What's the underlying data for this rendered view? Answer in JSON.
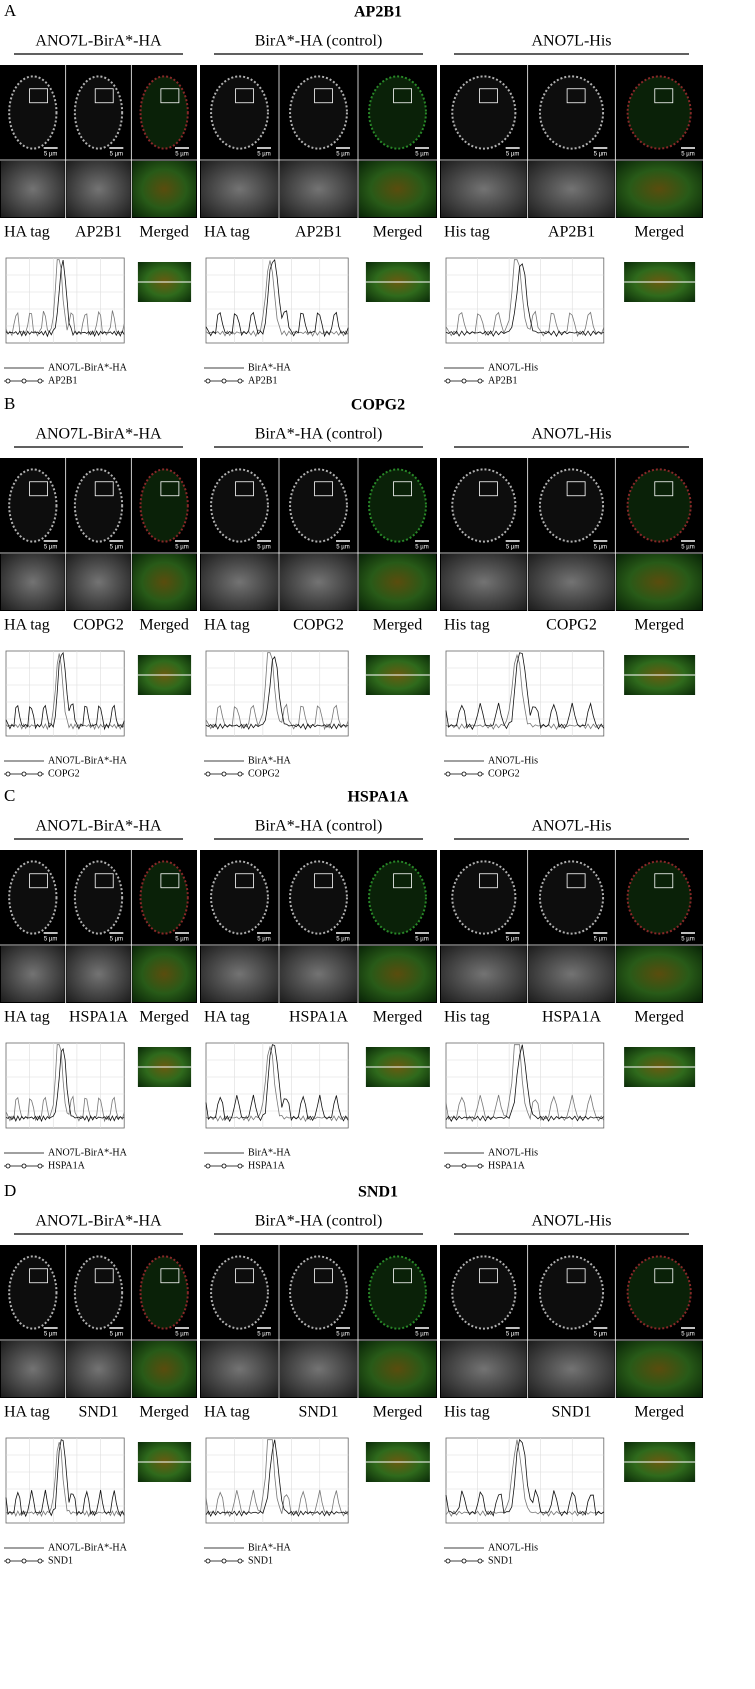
{
  "scale_bar": "5 µm",
  "panels": [
    {
      "letter": "A",
      "title": "AP2B1",
      "columns": [
        {
          "header": "ANO7L-BirA*-HA",
          "labels": [
            "HA tag",
            "AP2B1",
            "Merged"
          ],
          "legend": [
            "ANO7L-BirA*-HA",
            "AP2B1"
          ]
        },
        {
          "header": "BirA*-HA (control)",
          "labels": [
            "HA tag",
            "AP2B1",
            "Merged"
          ],
          "legend": [
            "BirA*-HA",
            "AP2B1"
          ]
        },
        {
          "header": "ANO7L-His",
          "labels": [
            "His tag",
            "AP2B1",
            "Merged"
          ],
          "legend": [
            "ANO7L-His",
            "AP2B1"
          ]
        }
      ]
    },
    {
      "letter": "B",
      "title": "COPG2",
      "columns": [
        {
          "header": "ANO7L-BirA*-HA",
          "labels": [
            "HA tag",
            "COPG2",
            "Merged"
          ],
          "legend": [
            "ANO7L-BirA*-HA",
            "COPG2"
          ]
        },
        {
          "header": "BirA*-HA (control)",
          "labels": [
            "HA tag",
            "COPG2",
            "Merged"
          ],
          "legend": [
            "BirA*-HA",
            "COPG2"
          ]
        },
        {
          "header": "ANO7L-His",
          "labels": [
            "His tag",
            "COPG2",
            "Merged"
          ],
          "legend": [
            "ANO7L-His",
            "COPG2"
          ]
        }
      ]
    },
    {
      "letter": "C",
      "title": "HSPA1A",
      "columns": [
        {
          "header": "ANO7L-BirA*-HA",
          "labels": [
            "HA tag",
            "HSPA1A",
            "Merged"
          ],
          "legend": [
            "ANO7L-BirA*-HA",
            "HSPA1A"
          ]
        },
        {
          "header": "BirA*-HA (control)",
          "labels": [
            "HA tag",
            "HSPA1A",
            "Merged"
          ],
          "legend": [
            "BirA*-HA",
            "HSPA1A"
          ]
        },
        {
          "header": "ANO7L-His",
          "labels": [
            "His tag",
            "HSPA1A",
            "Merged"
          ],
          "legend": [
            "ANO7L-His",
            "HSPA1A"
          ]
        }
      ]
    },
    {
      "letter": "D",
      "title": "SND1",
      "columns": [
        {
          "header": "ANO7L-BirA*-HA",
          "labels": [
            "HA tag",
            "SND1",
            "Merged"
          ],
          "legend": [
            "ANO7L-BirA*-HA",
            "SND1"
          ]
        },
        {
          "header": "BirA*-HA (control)",
          "labels": [
            "HA tag",
            "SND1",
            "Merged"
          ],
          "legend": [
            "BirA*-HA",
            "SND1"
          ]
        },
        {
          "header": "ANO7L-His",
          "labels": [
            "His tag",
            "SND1",
            "Merged"
          ],
          "legend": [
            "ANO7L-His",
            "SND1"
          ]
        }
      ]
    }
  ]
}
